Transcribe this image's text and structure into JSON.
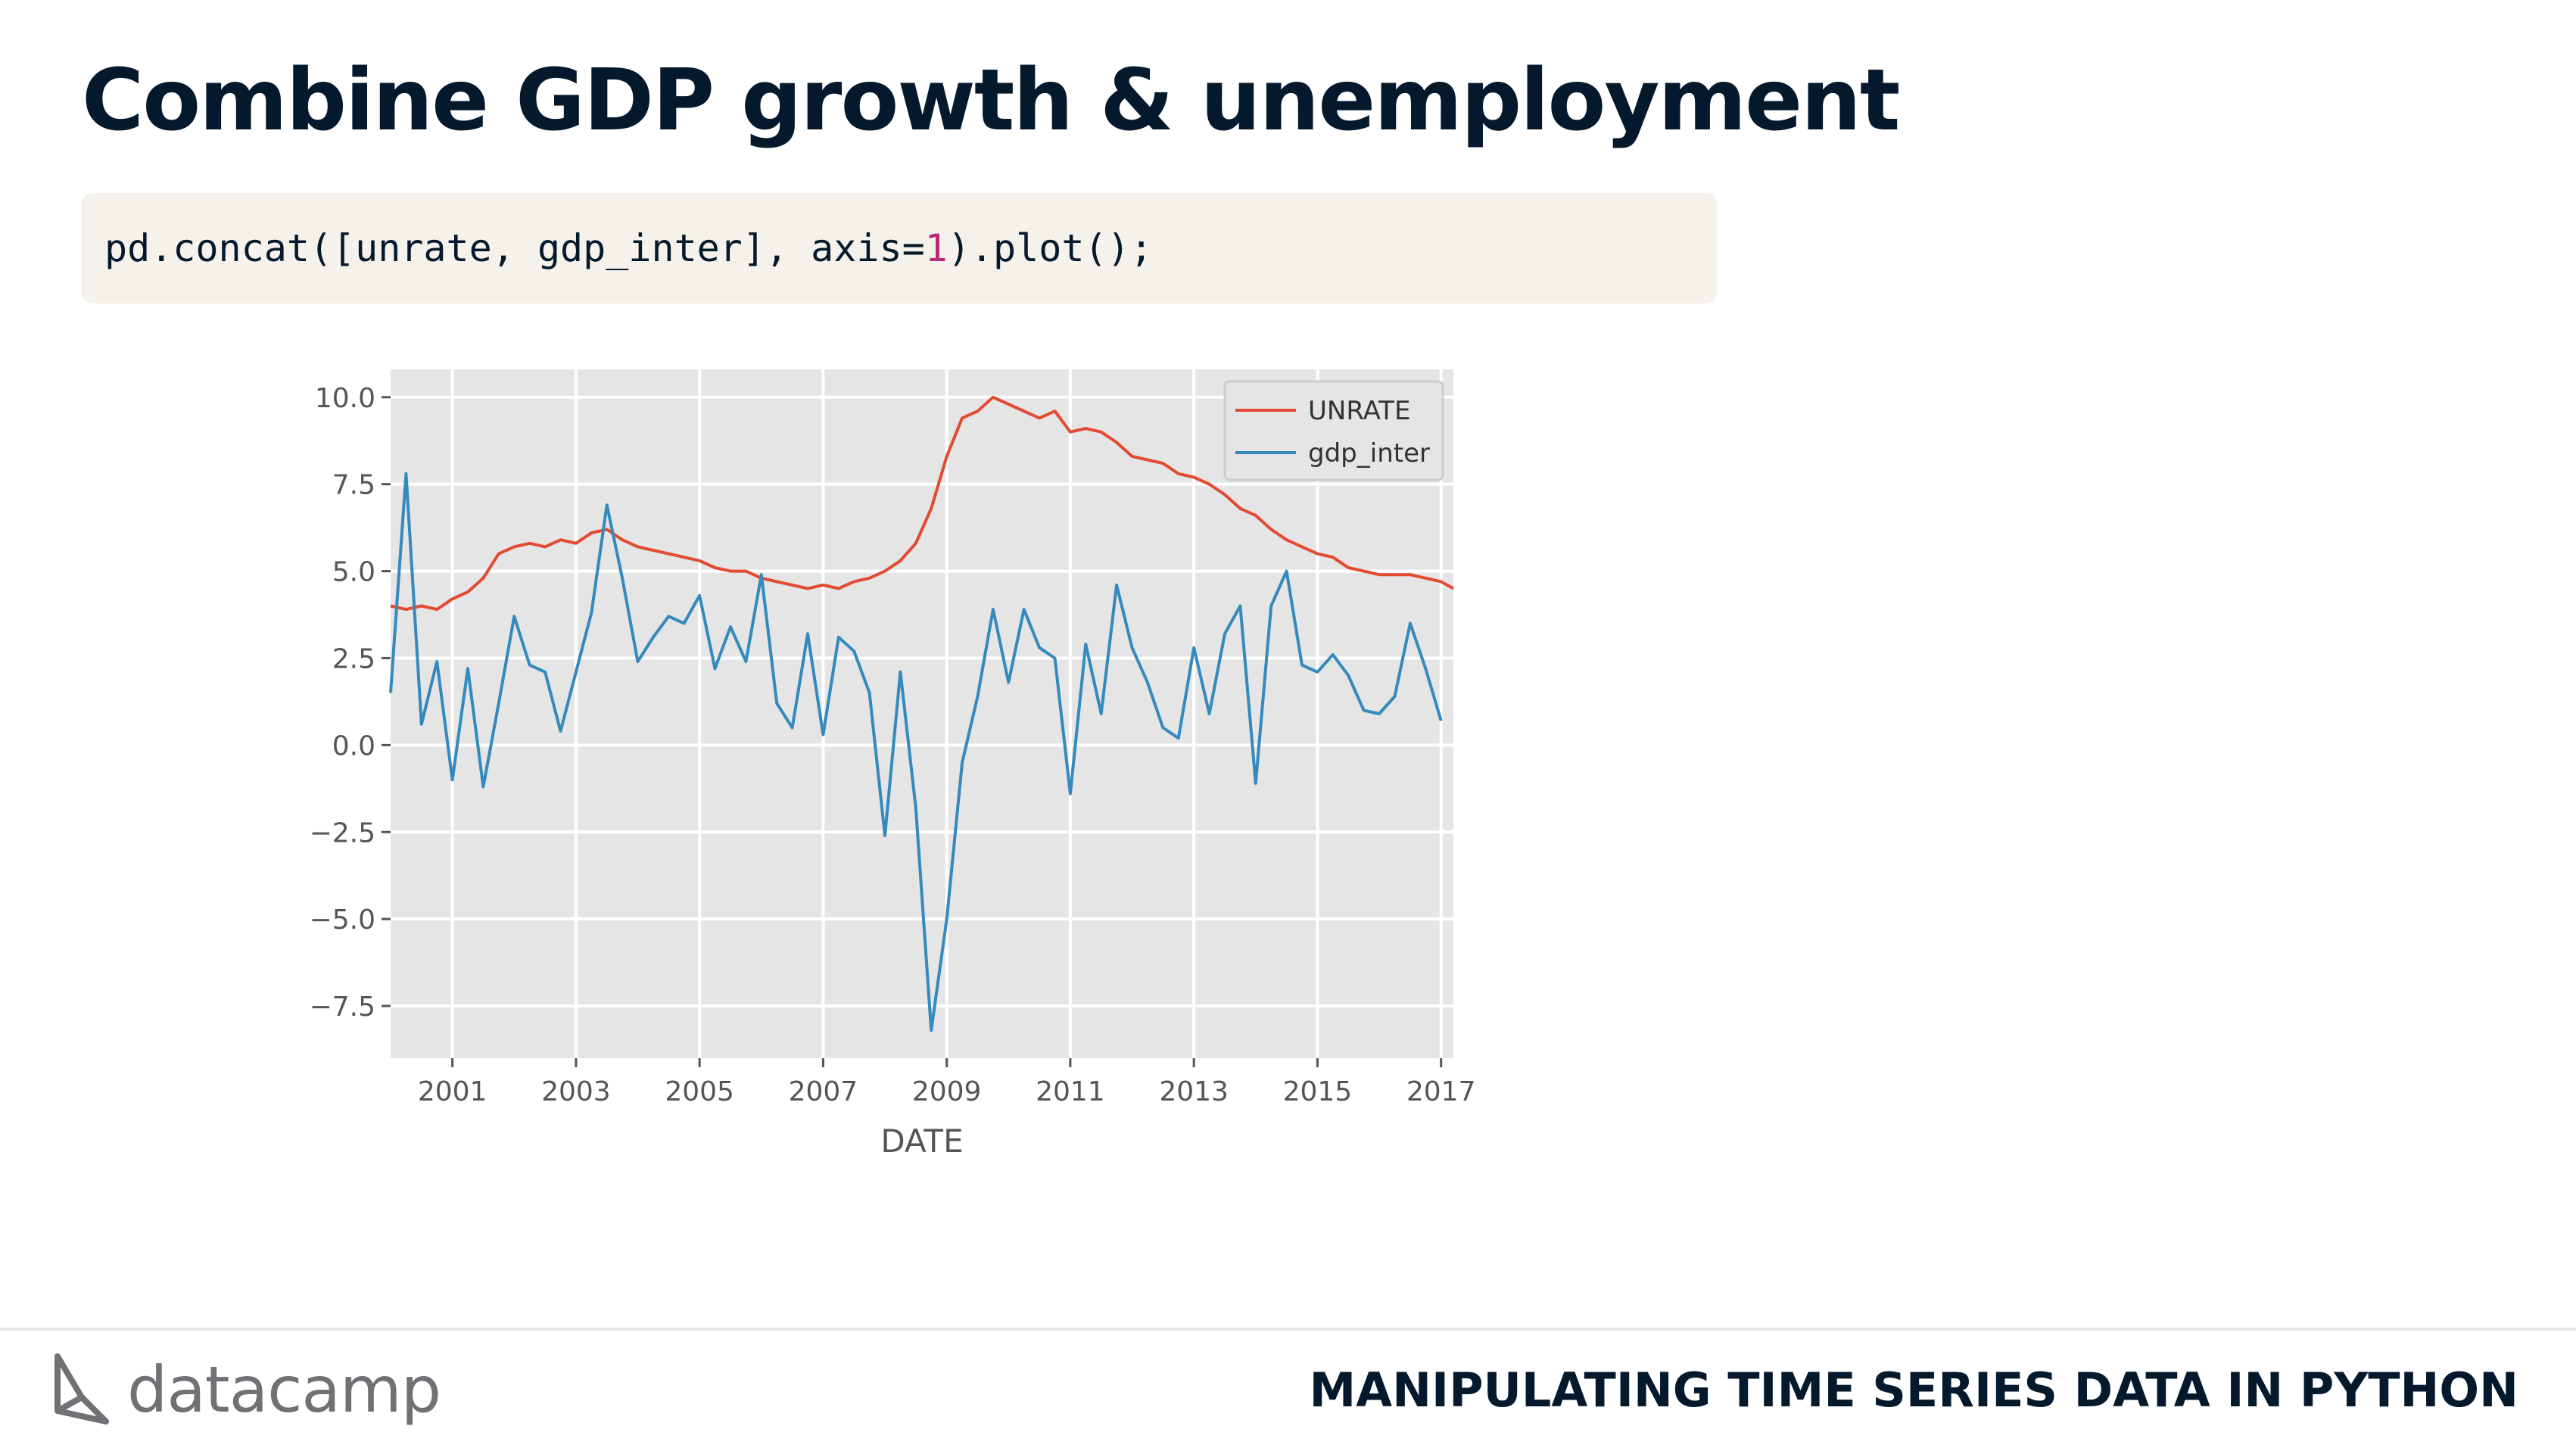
{
  "slide": {
    "title": "Combine GDP growth & unemployment",
    "code": {
      "prefix": "pd.concat([unrate, gdp_inter], axis=",
      "number": "1",
      "suffix": ").plot();"
    }
  },
  "footer": {
    "logo_text": "datacamp",
    "logo_icon": "datacamp-logo-icon",
    "course_title": "MANIPULATING TIME SERIES DATA IN PYTHON"
  },
  "chart_data": {
    "type": "line",
    "xlabel": "DATE",
    "ylabel": "",
    "xlim": [
      2000.0,
      2017.2
    ],
    "ylim": [
      -9.0,
      10.8
    ],
    "xticks": [
      2001,
      2003,
      2005,
      2007,
      2009,
      2011,
      2013,
      2015,
      2017
    ],
    "xtick_labels": [
      "2001",
      "2003",
      "2005",
      "2007",
      "2009",
      "2011",
      "2013",
      "2015",
      "2017"
    ],
    "yticks": [
      -7.5,
      -5.0,
      -2.5,
      0.0,
      2.5,
      5.0,
      7.5,
      10.0
    ],
    "ytick_labels": [
      "−7.5",
      "−5.0",
      "−2.5",
      "0.0",
      "2.5",
      "5.0",
      "7.5",
      "10.0"
    ],
    "grid": true,
    "legend_position": "top-right",
    "background": "#e5e5e5",
    "series": [
      {
        "name": "UNRATE",
        "color": "#e24a33",
        "x": [
          2000.0,
          2000.25,
          2000.5,
          2000.75,
          2001.0,
          2001.25,
          2001.5,
          2001.75,
          2002.0,
          2002.25,
          2002.5,
          2002.75,
          2003.0,
          2003.25,
          2003.5,
          2003.75,
          2004.0,
          2004.25,
          2004.5,
          2004.75,
          2005.0,
          2005.25,
          2005.5,
          2005.75,
          2006.0,
          2006.25,
          2006.5,
          2006.75,
          2007.0,
          2007.25,
          2007.5,
          2007.75,
          2008.0,
          2008.25,
          2008.5,
          2008.75,
          2009.0,
          2009.25,
          2009.5,
          2009.75,
          2010.0,
          2010.25,
          2010.5,
          2010.75,
          2011.0,
          2011.25,
          2011.5,
          2011.75,
          2012.0,
          2012.25,
          2012.5,
          2012.75,
          2013.0,
          2013.25,
          2013.5,
          2013.75,
          2014.0,
          2014.25,
          2014.5,
          2014.75,
          2015.0,
          2015.25,
          2015.5,
          2015.75,
          2016.0,
          2016.25,
          2016.5,
          2016.75,
          2017.0,
          2017.2
        ],
        "values": [
          4.0,
          3.9,
          4.0,
          3.9,
          4.2,
          4.4,
          4.8,
          5.5,
          5.7,
          5.8,
          5.7,
          5.9,
          5.8,
          6.1,
          6.2,
          5.9,
          5.7,
          5.6,
          5.5,
          5.4,
          5.3,
          5.1,
          5.0,
          5.0,
          4.8,
          4.7,
          4.6,
          4.5,
          4.6,
          4.5,
          4.7,
          4.8,
          5.0,
          5.3,
          5.8,
          6.8,
          8.3,
          9.4,
          9.6,
          10.0,
          9.8,
          9.6,
          9.4,
          9.6,
          9.0,
          9.1,
          9.0,
          8.7,
          8.3,
          8.2,
          8.1,
          7.8,
          7.7,
          7.5,
          7.2,
          6.8,
          6.6,
          6.2,
          5.9,
          5.7,
          5.5,
          5.4,
          5.1,
          5.0,
          4.9,
          4.9,
          4.9,
          4.8,
          4.7,
          4.5
        ]
      },
      {
        "name": "gdp_inter",
        "color": "#348abd",
        "x": [
          2000.0,
          2000.25,
          2000.5,
          2000.75,
          2001.0,
          2001.25,
          2001.5,
          2001.75,
          2002.0,
          2002.25,
          2002.5,
          2002.75,
          2003.0,
          2003.25,
          2003.5,
          2003.75,
          2004.0,
          2004.25,
          2004.5,
          2004.75,
          2005.0,
          2005.25,
          2005.5,
          2005.75,
          2006.0,
          2006.25,
          2006.5,
          2006.75,
          2007.0,
          2007.25,
          2007.5,
          2007.75,
          2008.0,
          2008.25,
          2008.5,
          2008.75,
          2009.0,
          2009.25,
          2009.5,
          2009.75,
          2010.0,
          2010.25,
          2010.5,
          2010.75,
          2011.0,
          2011.25,
          2011.5,
          2011.75,
          2012.0,
          2012.25,
          2012.5,
          2012.75,
          2013.0,
          2013.25,
          2013.5,
          2013.75,
          2014.0,
          2014.25,
          2014.5,
          2014.75,
          2015.0,
          2015.25,
          2015.5,
          2015.75,
          2016.0,
          2016.25,
          2016.5,
          2016.75,
          2017.0
        ],
        "values": [
          1.5,
          7.8,
          0.6,
          2.4,
          -1.0,
          2.2,
          -1.2,
          1.2,
          3.7,
          2.3,
          2.1,
          0.4,
          2.1,
          3.8,
          6.9,
          4.8,
          2.4,
          3.1,
          3.7,
          3.5,
          4.3,
          2.2,
          3.4,
          2.4,
          4.9,
          1.2,
          0.5,
          3.2,
          0.3,
          3.1,
          2.7,
          1.5,
          -2.6,
          2.1,
          -1.8,
          -8.2,
          -5.0,
          -0.5,
          1.4,
          3.9,
          1.8,
          3.9,
          2.8,
          2.5,
          -1.4,
          2.9,
          0.9,
          4.6,
          2.8,
          1.8,
          0.5,
          0.2,
          2.8,
          0.9,
          3.2,
          4.0,
          -1.1,
          4.0,
          5.0,
          2.3,
          2.1,
          2.6,
          2.0,
          1.0,
          0.9,
          1.4,
          3.5,
          2.2,
          0.7
        ]
      }
    ]
  }
}
